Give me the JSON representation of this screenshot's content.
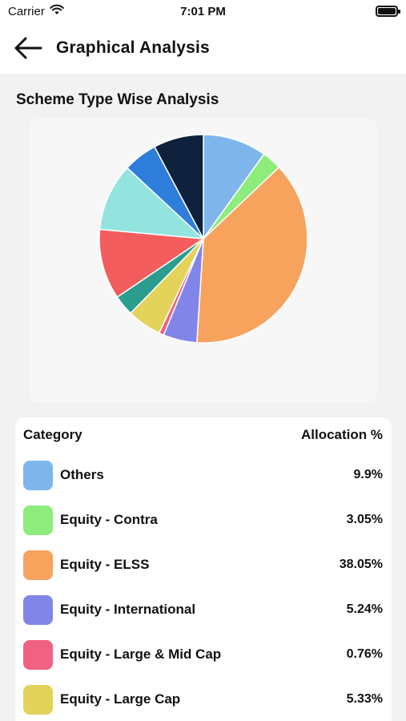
{
  "status_bar": {
    "carrier": "Carrier",
    "time": "7:01 PM"
  },
  "header": {
    "title": "Graphical Analysis",
    "back_icon": "arrow-left-icon"
  },
  "section": {
    "title": "Scheme Type Wise Analysis"
  },
  "table": {
    "col_category": "Category",
    "col_allocation": "Allocation %",
    "rows": [
      {
        "label": "Others",
        "value": "9.9%",
        "color": "#7eb6ec"
      },
      {
        "label": "Equity - Contra",
        "value": "3.05%",
        "color": "#8dec7c"
      },
      {
        "label": "Equity - ELSS",
        "value": "38.05%",
        "color": "#f7a35e"
      },
      {
        "label": "Equity - International",
        "value": "5.24%",
        "color": "#8285e8"
      },
      {
        "label": "Equity - Large & Mid Cap",
        "value": "0.76%",
        "color": "#f06182"
      },
      {
        "label": "Equity - Large Cap",
        "value": "5.33%",
        "color": "#e3d35a"
      }
    ]
  },
  "chart_data": {
    "type": "pie",
    "title": "",
    "slices": [
      {
        "label": "Others",
        "value": 9.9,
        "color": "#7eb6ec"
      },
      {
        "label": "Equity - Contra",
        "value": 3.05,
        "color": "#8dec7c"
      },
      {
        "label": "Equity - ELSS",
        "value": 38.05,
        "color": "#f7a35e"
      },
      {
        "label": "Equity - International",
        "value": 5.24,
        "color": "#8285e8"
      },
      {
        "label": "Equity - Large & Mid Cap",
        "value": 0.76,
        "color": "#f06182"
      },
      {
        "label": "Equity - Large Cap",
        "value": 5.33,
        "color": "#e3d35a"
      },
      {
        "value": 3.2,
        "color": "#2a9d8f"
      },
      {
        "value": 10.9,
        "color": "#f35d5d"
      },
      {
        "value": 10.5,
        "color": "#93e4df"
      },
      {
        "value": 5.3,
        "color": "#2f7edb"
      },
      {
        "value": 7.77,
        "color": "#0f213c"
      }
    ]
  }
}
